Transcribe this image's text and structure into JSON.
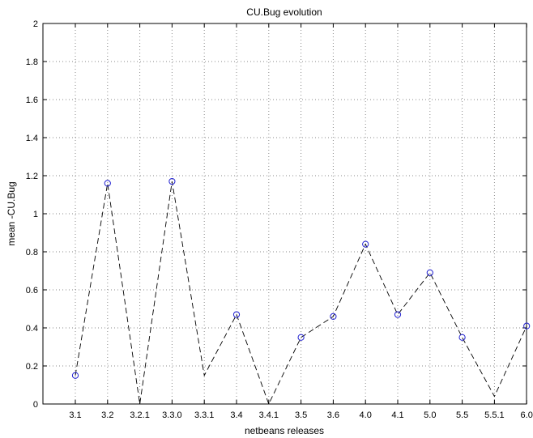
{
  "chart_data": {
    "type": "line",
    "title": "CU.Bug evolution",
    "xlabel": "netbeans releases",
    "ylabel": "mean -CU.Bug",
    "categories": [
      "3.1",
      "3.2",
      "3.2.1",
      "3.3.0",
      "3.3.1",
      "3.4",
      "3.4.1",
      "3.5",
      "3.6",
      "4.0",
      "4.1",
      "5.0",
      "5.5",
      "5.5.1",
      "6.0"
    ],
    "series": [
      {
        "values": [
          0.15,
          1.16,
          0.0,
          1.17,
          0.15,
          0.47,
          0.0,
          0.35,
          0.46,
          0.84,
          0.47,
          0.69,
          0.35,
          0.04,
          0.41
        ],
        "markers": [
          true,
          true,
          false,
          true,
          false,
          true,
          false,
          true,
          true,
          true,
          true,
          true,
          true,
          false,
          true
        ],
        "color": "#2020d0",
        "line_style": "dashed",
        "line_color": "#000000"
      }
    ],
    "ylim": [
      0,
      2
    ],
    "yticks": [
      0,
      0.2,
      0.4,
      0.6,
      0.8,
      1,
      1.2,
      1.4,
      1.6,
      1.8,
      2
    ],
    "ytick_labels": [
      "0",
      "0.2",
      "0.4",
      "0.6",
      "0.8",
      "1",
      "1.2",
      "1.4",
      "1.6",
      "1.8",
      "2"
    ],
    "grid": true,
    "legend": "none"
  }
}
